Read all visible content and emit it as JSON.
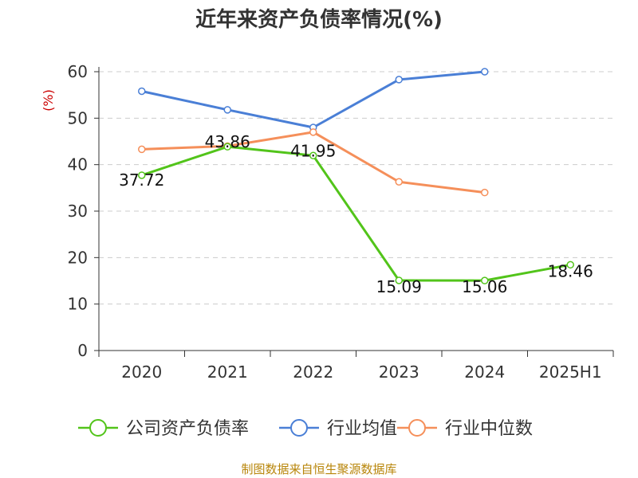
{
  "chart_data": {
    "type": "line",
    "title": "近年来资产负债率情况(%)",
    "ylabel": "(%)",
    "xlabel": "",
    "categories": [
      "2020",
      "2021",
      "2022",
      "2023",
      "2024",
      "2025H1"
    ],
    "ylim": [
      0,
      60
    ],
    "yticks": [
      0,
      10,
      20,
      30,
      40,
      50,
      60
    ],
    "grid": true,
    "legend_position": "bottom",
    "series": [
      {
        "name": "公司资产负债率",
        "color": "#52c41a",
        "show_labels": true,
        "values": [
          37.72,
          43.86,
          41.95,
          15.09,
          15.06,
          18.46
        ],
        "labels": [
          "37.72",
          "43.86",
          "41.95",
          "15.09",
          "15.06",
          "18.46"
        ]
      },
      {
        "name": "行业均值",
        "color": "#4a7fd6",
        "show_labels": false,
        "values": [
          55.8,
          51.8,
          48.0,
          58.3,
          60.0,
          null
        ]
      },
      {
        "name": "行业中位数",
        "color": "#f58f5a",
        "show_labels": false,
        "values": [
          43.3,
          44.0,
          47.0,
          36.3,
          34.0,
          null
        ]
      }
    ]
  },
  "source_text": "制图数据来自恒生聚源数据库"
}
